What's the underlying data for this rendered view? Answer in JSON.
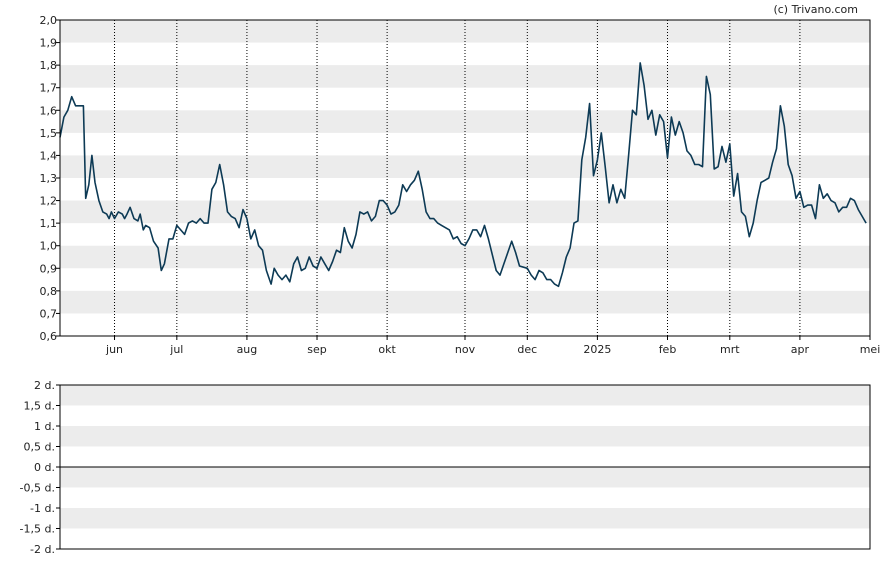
{
  "copyright": "(c) Trivano.com",
  "chart_data": [
    {
      "type": "line",
      "title": "",
      "ylim": [
        0.6,
        2.0
      ],
      "yticks": [
        0.6,
        0.7,
        0.8,
        0.9,
        1.0,
        1.1,
        1.2,
        1.3,
        1.4,
        1.5,
        1.6,
        1.7,
        1.8,
        1.9,
        2.0
      ],
      "ytick_labels": [
        "0,6",
        "0,7",
        "0,8",
        "0,9",
        "1,0",
        "1,1",
        "1,2",
        "1,3",
        "1,4",
        "1,5",
        "1,6",
        "1,7",
        "1,8",
        "1,9",
        "2,0"
      ],
      "x_months": [
        {
          "label": "jun",
          "pos": 7
        },
        {
          "label": "jul",
          "pos": 15
        },
        {
          "label": "aug",
          "pos": 24
        },
        {
          "label": "sep",
          "pos": 33
        },
        {
          "label": "okt",
          "pos": 42
        },
        {
          "label": "nov",
          "pos": 52
        },
        {
          "label": "dec",
          "pos": 60
        },
        {
          "label": "2025",
          "pos": 69
        },
        {
          "label": "feb",
          "pos": 78
        },
        {
          "label": "mrt",
          "pos": 86
        },
        {
          "label": "apr",
          "pos": 95
        },
        {
          "label": "mei",
          "pos": 104
        }
      ],
      "x_range": [
        0,
        104
      ],
      "color": "#0d3a55",
      "grid": "horizontal bands, dotted vertical month lines",
      "series": [
        {
          "values": [
            [
              0,
              1.48
            ],
            [
              0.5,
              1.57
            ],
            [
              1,
              1.6
            ],
            [
              1.5,
              1.66
            ],
            [
              2,
              1.62
            ],
            [
              3,
              1.62
            ],
            [
              3.3,
              1.21
            ],
            [
              3.7,
              1.27
            ],
            [
              4.1,
              1.4
            ],
            [
              4.5,
              1.28
            ],
            [
              5,
              1.2
            ],
            [
              5.5,
              1.15
            ],
            [
              6,
              1.14
            ],
            [
              6.3,
              1.12
            ],
            [
              6.6,
              1.15
            ],
            [
              7,
              1.12
            ],
            [
              7.5,
              1.15
            ],
            [
              8,
              1.14
            ],
            [
              8.3,
              1.12
            ],
            [
              8.6,
              1.14
            ],
            [
              9,
              1.17
            ],
            [
              9.5,
              1.12
            ],
            [
              10,
              1.11
            ],
            [
              10.3,
              1.14
            ],
            [
              10.7,
              1.07
            ],
            [
              11,
              1.09
            ],
            [
              11.5,
              1.08
            ],
            [
              12,
              1.02
            ],
            [
              12.6,
              0.99
            ],
            [
              13,
              0.89
            ],
            [
              13.4,
              0.92
            ],
            [
              14,
              1.03
            ],
            [
              14.5,
              1.03
            ],
            [
              15,
              1.09
            ],
            [
              15.5,
              1.07
            ],
            [
              16,
              1.05
            ],
            [
              16.5,
              1.1
            ],
            [
              17,
              1.11
            ],
            [
              17.5,
              1.1
            ],
            [
              18,
              1.12
            ],
            [
              18.5,
              1.1
            ],
            [
              19,
              1.1
            ],
            [
              19.5,
              1.25
            ],
            [
              20,
              1.28
            ],
            [
              20.5,
              1.36
            ],
            [
              21,
              1.27
            ],
            [
              21.5,
              1.15
            ],
            [
              22,
              1.13
            ],
            [
              22.5,
              1.12
            ],
            [
              23,
              1.08
            ],
            [
              23.5,
              1.16
            ],
            [
              24,
              1.12
            ],
            [
              24.5,
              1.03
            ],
            [
              25,
              1.07
            ],
            [
              25.5,
              1.0
            ],
            [
              26,
              0.98
            ],
            [
              26.5,
              0.89
            ],
            [
              26.8,
              0.86
            ],
            [
              27.1,
              0.83
            ],
            [
              27.5,
              0.9
            ],
            [
              28,
              0.87
            ],
            [
              28.5,
              0.85
            ],
            [
              29,
              0.87
            ],
            [
              29.5,
              0.84
            ],
            [
              30,
              0.92
            ],
            [
              30.5,
              0.95
            ],
            [
              31,
              0.89
            ],
            [
              31.5,
              0.9
            ],
            [
              32,
              0.95
            ],
            [
              32.5,
              0.91
            ],
            [
              33,
              0.9
            ],
            [
              33.5,
              0.95
            ],
            [
              34,
              0.92
            ],
            [
              34.5,
              0.89
            ],
            [
              35,
              0.93
            ],
            [
              35.5,
              0.98
            ],
            [
              36,
              0.97
            ],
            [
              36.5,
              1.08
            ],
            [
              37,
              1.02
            ],
            [
              37.5,
              0.99
            ],
            [
              38,
              1.05
            ],
            [
              38.5,
              1.15
            ],
            [
              39,
              1.14
            ],
            [
              39.5,
              1.15
            ],
            [
              40,
              1.11
            ],
            [
              40.5,
              1.13
            ],
            [
              41,
              1.2
            ],
            [
              41.5,
              1.2
            ],
            [
              42,
              1.18
            ],
            [
              42.5,
              1.14
            ],
            [
              43,
              1.15
            ],
            [
              43.5,
              1.18
            ],
            [
              44,
              1.27
            ],
            [
              44.5,
              1.24
            ],
            [
              45,
              1.27
            ],
            [
              45.5,
              1.29
            ],
            [
              46,
              1.33
            ],
            [
              46.5,
              1.25
            ],
            [
              47,
              1.15
            ],
            [
              47.5,
              1.12
            ],
            [
              48,
              1.12
            ],
            [
              48.5,
              1.1
            ],
            [
              49,
              1.09
            ],
            [
              49.5,
              1.08
            ],
            [
              50,
              1.07
            ],
            [
              50.5,
              1.03
            ],
            [
              51,
              1.04
            ],
            [
              51.5,
              1.01
            ],
            [
              52,
              1.0
            ],
            [
              52.5,
              1.03
            ],
            [
              53,
              1.07
            ],
            [
              53.5,
              1.07
            ],
            [
              54,
              1.04
            ],
            [
              54.5,
              1.09
            ],
            [
              55,
              1.03
            ],
            [
              55.5,
              0.96
            ],
            [
              56,
              0.89
            ],
            [
              56.5,
              0.87
            ],
            [
              57,
              0.92
            ],
            [
              57.5,
              0.97
            ],
            [
              58,
              1.02
            ],
            [
              58.5,
              0.97
            ],
            [
              59,
              0.91
            ],
            [
              60,
              0.9
            ],
            [
              60.5,
              0.87
            ],
            [
              61,
              0.85
            ],
            [
              61.5,
              0.89
            ],
            [
              62,
              0.88
            ],
            [
              62.5,
              0.85
            ],
            [
              63,
              0.85
            ],
            [
              63.5,
              0.83
            ],
            [
              64,
              0.82
            ],
            [
              64.5,
              0.88
            ],
            [
              65,
              0.95
            ],
            [
              65.5,
              0.99
            ],
            [
              66,
              1.1
            ],
            [
              66.5,
              1.11
            ],
            [
              67,
              1.38
            ],
            [
              67.5,
              1.48
            ],
            [
              68,
              1.63
            ],
            [
              68.5,
              1.31
            ],
            [
              69,
              1.38
            ],
            [
              69.5,
              1.5
            ],
            [
              70,
              1.35
            ],
            [
              70.5,
              1.19
            ],
            [
              71,
              1.27
            ],
            [
              71.5,
              1.19
            ],
            [
              72,
              1.25
            ],
            [
              72.5,
              1.21
            ],
            [
              73,
              1.4
            ],
            [
              73.5,
              1.6
            ],
            [
              74,
              1.58
            ],
            [
              74.5,
              1.81
            ],
            [
              75,
              1.71
            ],
            [
              75.5,
              1.56
            ],
            [
              76,
              1.6
            ],
            [
              76.5,
              1.49
            ],
            [
              77,
              1.58
            ],
            [
              77.5,
              1.55
            ],
            [
              78,
              1.39
            ],
            [
              78.5,
              1.57
            ],
            [
              79,
              1.49
            ],
            [
              79.5,
              1.55
            ],
            [
              80,
              1.5
            ],
            [
              80.5,
              1.42
            ],
            [
              81,
              1.4
            ],
            [
              81.5,
              1.36
            ],
            [
              82,
              1.36
            ],
            [
              82.5,
              1.35
            ],
            [
              83,
              1.75
            ],
            [
              83.5,
              1.67
            ],
            [
              84,
              1.34
            ],
            [
              84.5,
              1.35
            ],
            [
              85,
              1.44
            ],
            [
              85.5,
              1.37
            ],
            [
              86,
              1.45
            ],
            [
              86.5,
              1.22
            ],
            [
              87,
              1.32
            ],
            [
              87.5,
              1.15
            ],
            [
              88,
              1.13
            ],
            [
              88.5,
              1.04
            ],
            [
              89,
              1.1
            ],
            [
              89.5,
              1.2
            ],
            [
              90,
              1.28
            ],
            [
              90.5,
              1.29
            ],
            [
              91,
              1.3
            ],
            [
              91.5,
              1.37
            ],
            [
              92,
              1.43
            ],
            [
              92.5,
              1.62
            ],
            [
              93,
              1.53
            ],
            [
              93.5,
              1.36
            ],
            [
              94,
              1.31
            ],
            [
              94.5,
              1.21
            ],
            [
              95,
              1.24
            ],
            [
              95.5,
              1.17
            ],
            [
              96,
              1.18
            ],
            [
              96.5,
              1.18
            ],
            [
              97,
              1.12
            ],
            [
              97.5,
              1.27
            ],
            [
              98,
              1.21
            ],
            [
              98.5,
              1.23
            ],
            [
              99,
              1.2
            ],
            [
              99.5,
              1.19
            ],
            [
              100,
              1.15
            ],
            [
              100.5,
              1.17
            ],
            [
              101,
              1.17
            ],
            [
              101.5,
              1.21
            ],
            [
              102,
              1.2
            ],
            [
              102.5,
              1.16
            ],
            [
              103,
              1.13
            ],
            [
              103.5,
              1.1
            ]
          ]
        }
      ]
    },
    {
      "type": "line",
      "title": "",
      "ylim": [
        -2,
        2
      ],
      "yticks": [
        -2,
        -1.5,
        -1,
        -0.5,
        0,
        0.5,
        1,
        1.5,
        2
      ],
      "ytick_labels": [
        "-2 d.",
        "-1,5 d.",
        "-1 d.",
        "-0,5 d.",
        "0 d.",
        "0,5 d.",
        "1 d.",
        "1,5 d.",
        "2 d."
      ],
      "zero_line": 0,
      "grid": "horizontal bands"
    }
  ]
}
